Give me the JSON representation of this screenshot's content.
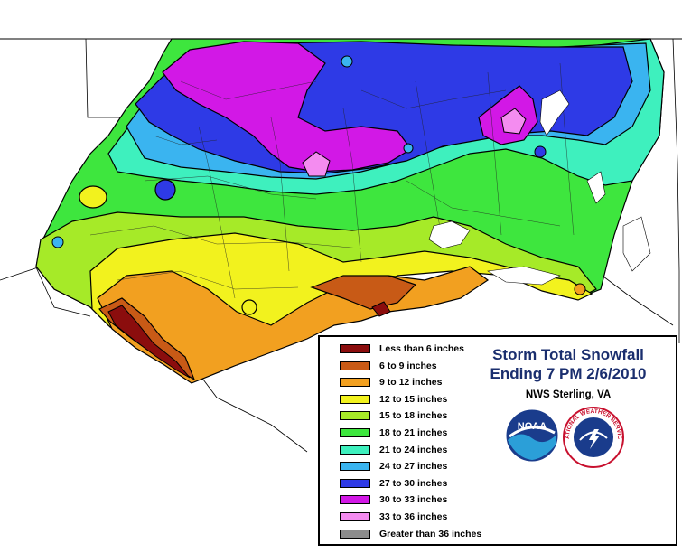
{
  "legend": {
    "title_line1": "Storm Total Snowfall",
    "title_line2": "Ending 7 PM 2/6/2010",
    "office": "NWS Sterling, VA",
    "logos": [
      "noaa-logo",
      "national-weather-service-logo"
    ],
    "items": [
      {
        "label": "Less than 6 inches",
        "color": "#8b0d0d"
      },
      {
        "label": "6 to 9 inches",
        "color": "#c85a16"
      },
      {
        "label": "9 to 12 inches",
        "color": "#f2a020"
      },
      {
        "label": "12 to 15 inches",
        "color": "#f2f21e"
      },
      {
        "label": "15 to 18 inches",
        "color": "#a6ea28"
      },
      {
        "label": "18 to 21 inches",
        "color": "#3ee63e"
      },
      {
        "label": "21 to 24 inches",
        "color": "#3ef0be"
      },
      {
        "label": "24 to 27 inches",
        "color": "#3ab4f0"
      },
      {
        "label": "27 to 30 inches",
        "color": "#2e3ae6"
      },
      {
        "label": "30 to 33 inches",
        "color": "#d218e6"
      },
      {
        "label": "33 to 36 inches",
        "color": "#f48cf0"
      },
      {
        "label": "Greater than 36 inches",
        "color": "#8c8c8c"
      }
    ]
  },
  "map": {
    "background": "#ffffff",
    "boundary_color": "#000000"
  }
}
